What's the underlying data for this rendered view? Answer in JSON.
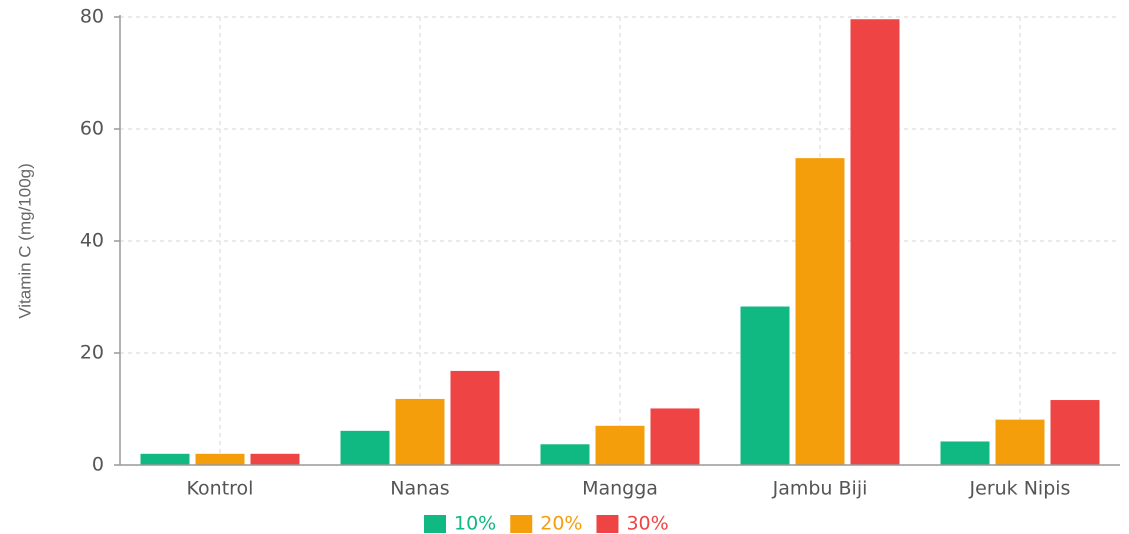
{
  "chart_data": {
    "type": "bar",
    "y_label": "Vitamin C (mg/100g)",
    "categories": [
      "Kontrol",
      "Nanas",
      "Mangga",
      "Jambu Biji",
      "Jeruk Nipis"
    ],
    "series": [
      {
        "name": "10%",
        "color": "#10b981",
        "values": [
          2.0,
          6.1,
          3.7,
          28.3,
          4.2
        ]
      },
      {
        "name": "20%",
        "color": "#f59e0b",
        "values": [
          2.0,
          11.8,
          7.0,
          54.8,
          8.1
        ]
      },
      {
        "name": "30%",
        "color": "#ef4444",
        "values": [
          2.0,
          16.8,
          10.1,
          79.6,
          11.6
        ]
      }
    ],
    "ylim": [
      0,
      80
    ],
    "yticks": [
      0,
      20,
      40,
      60,
      80
    ],
    "grid": true
  }
}
